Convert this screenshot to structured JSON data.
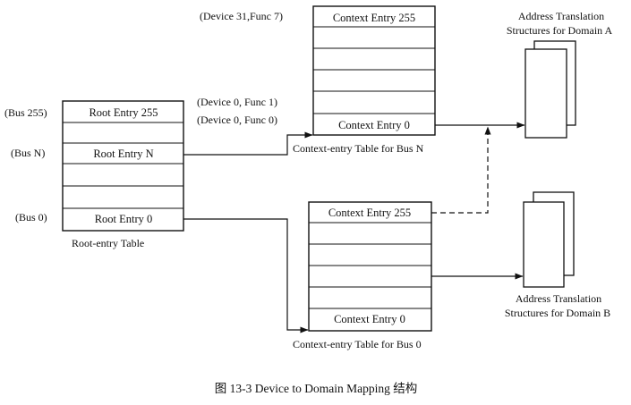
{
  "root_table": {
    "entry_top": "Root Entry 255",
    "entry_mid": "Root Entry N",
    "entry_bottom": "Root  Entry 0",
    "caption": "Root-entry Table",
    "label_top": "(Bus 255)",
    "label_mid": "(Bus N)",
    "label_bottom": "(Bus 0)"
  },
  "context_n": {
    "entry_top": "Context Entry 255",
    "entry_bottom": "Context Entry 0",
    "caption": "Context-entry Table for Bus N",
    "label_top": "(Device 31,Func 7)",
    "label_func1": "(Device 0, Func 1)",
    "label_func0": "(Device 0, Func 0)"
  },
  "context_0": {
    "entry_top": "Context Entry 255",
    "entry_bottom": "Context Entry 0",
    "caption": "Context-entry Table for Bus 0"
  },
  "domain_a": {
    "line1": "Address Translation",
    "line2": "Structures for Domain A"
  },
  "domain_b": {
    "line1": "Address Translation",
    "line2": "Structures for Domain B"
  },
  "figure_caption": "图 13-3    Device to Domain Mapping 结构",
  "colors": {
    "ink": "#111111",
    "background": "#ffffff"
  }
}
